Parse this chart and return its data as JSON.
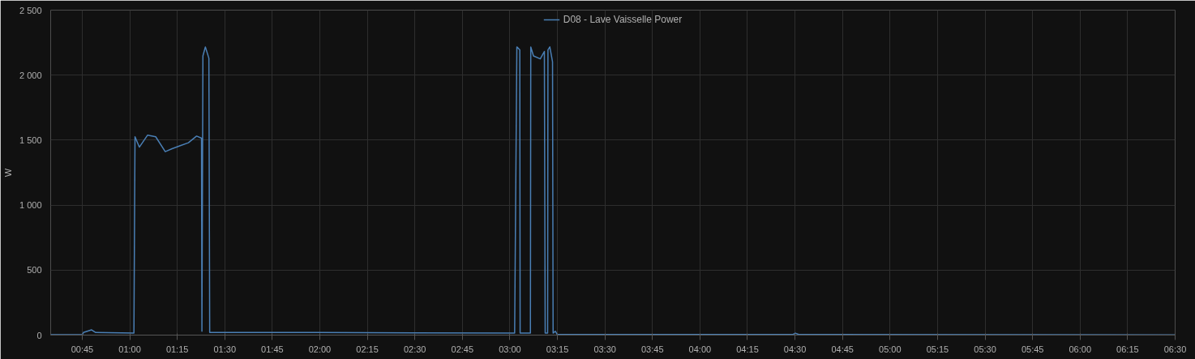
{
  "chart_data": {
    "type": "line",
    "ylabel": "W",
    "legend": "top",
    "grid": true,
    "marker": "none",
    "line_style": "solid",
    "xlim": [
      0.584,
      6.5
    ],
    "ylim": [
      0,
      2500
    ],
    "xticks": [
      {
        "value": 0.75,
        "label": "00:45"
      },
      {
        "value": 1,
        "label": "01:00"
      },
      {
        "value": 1.25,
        "label": "01:15"
      },
      {
        "value": 1.5,
        "label": "01:30"
      },
      {
        "value": 1.75,
        "label": "01:45"
      },
      {
        "value": 2,
        "label": "02:00"
      },
      {
        "value": 2.25,
        "label": "02:15"
      },
      {
        "value": 2.5,
        "label": "02:30"
      },
      {
        "value": 2.75,
        "label": "02:45"
      },
      {
        "value": 3,
        "label": "03:00"
      },
      {
        "value": 3.25,
        "label": "03:15"
      },
      {
        "value": 3.5,
        "label": "03:30"
      },
      {
        "value": 3.75,
        "label": "03:45"
      },
      {
        "value": 4,
        "label": "04:00"
      },
      {
        "value": 4.25,
        "label": "04:15"
      },
      {
        "value": 4.5,
        "label": "04:30"
      },
      {
        "value": 4.75,
        "label": "04:45"
      },
      {
        "value": 5,
        "label": "05:00"
      },
      {
        "value": 5.25,
        "label": "05:15"
      },
      {
        "value": 5.5,
        "label": "05:30"
      },
      {
        "value": 5.75,
        "label": "05:45"
      },
      {
        "value": 6,
        "label": "06:00"
      },
      {
        "value": 6.25,
        "label": "06:15"
      },
      {
        "value": 6.5,
        "label": "06:30"
      }
    ],
    "yticks": [
      0,
      500,
      {
        "value": 1000,
        "label": "1 000"
      },
      {
        "value": 1500,
        "label": "1 500"
      },
      {
        "value": 2000,
        "label": "2 000"
      },
      {
        "value": 2500,
        "label": "2 500"
      }
    ],
    "series": [
      {
        "name": "D08 - Lave Vaisselle Power",
        "color": "#4a7fb5",
        "x": [
          0.584,
          0.75,
          0.7565,
          0.7995,
          0.821,
          1.022,
          1.0277,
          1.0505,
          1.0935,
          1.1366,
          1.1869,
          1.2227,
          1.2657,
          1.3088,
          1.3518,
          1.3776,
          1.3798,
          1.385,
          1.3979,
          1.4164,
          1.4207,
          1.9833,
          3.025,
          3.0367,
          3.0522,
          3.0539,
          3.108,
          3.1099,
          3.1241,
          3.1598,
          3.1814,
          3.1857,
          3.1986,
          3.2003,
          3.2102,
          3.2244,
          3.2274,
          3.2389,
          3.249,
          4.49,
          4.5017,
          4.52,
          6.5
        ],
        "values": [
          3,
          3,
          20,
          40,
          20,
          15,
          1526,
          1446,
          1538,
          1526,
          1411,
          1434,
          1457,
          1480,
          1531,
          1515,
          30,
          2148,
          2217,
          2130,
          20,
          20,
          15,
          2217,
          2194,
          15,
          15,
          2217,
          2148,
          2125,
          2182,
          15,
          15,
          2194,
          2217,
          2102,
          15,
          30,
          5,
          5,
          15,
          5,
          2
        ]
      }
    ]
  }
}
